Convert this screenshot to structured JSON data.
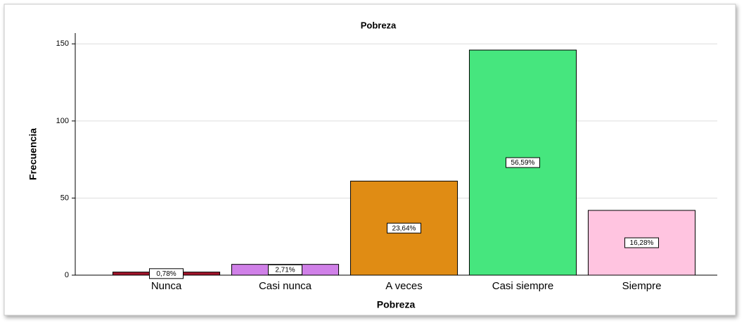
{
  "chart_data": {
    "type": "bar",
    "title": "Pobreza",
    "x_label": "Pobreza",
    "y_label": "Frecuencia",
    "categories": [
      "Nunca",
      "Casi nunca",
      "A veces",
      "Casi siempre",
      "Siempre"
    ],
    "values": [
      2,
      7,
      61,
      146,
      42
    ],
    "percentages": [
      0.78,
      2.71,
      23.64,
      56.59,
      16.28
    ],
    "percentage_labels": [
      "0,78%",
      "2,71%",
      "23,64%",
      "56,59%",
      "16,28%"
    ],
    "colors": [
      "#a0142a",
      "#d080e8",
      "#e08c14",
      "#46e67e",
      "#ffc4e0"
    ],
    "ylim": [
      0,
      157
    ],
    "yticks": [
      0,
      50,
      100,
      150
    ],
    "grid": true
  }
}
